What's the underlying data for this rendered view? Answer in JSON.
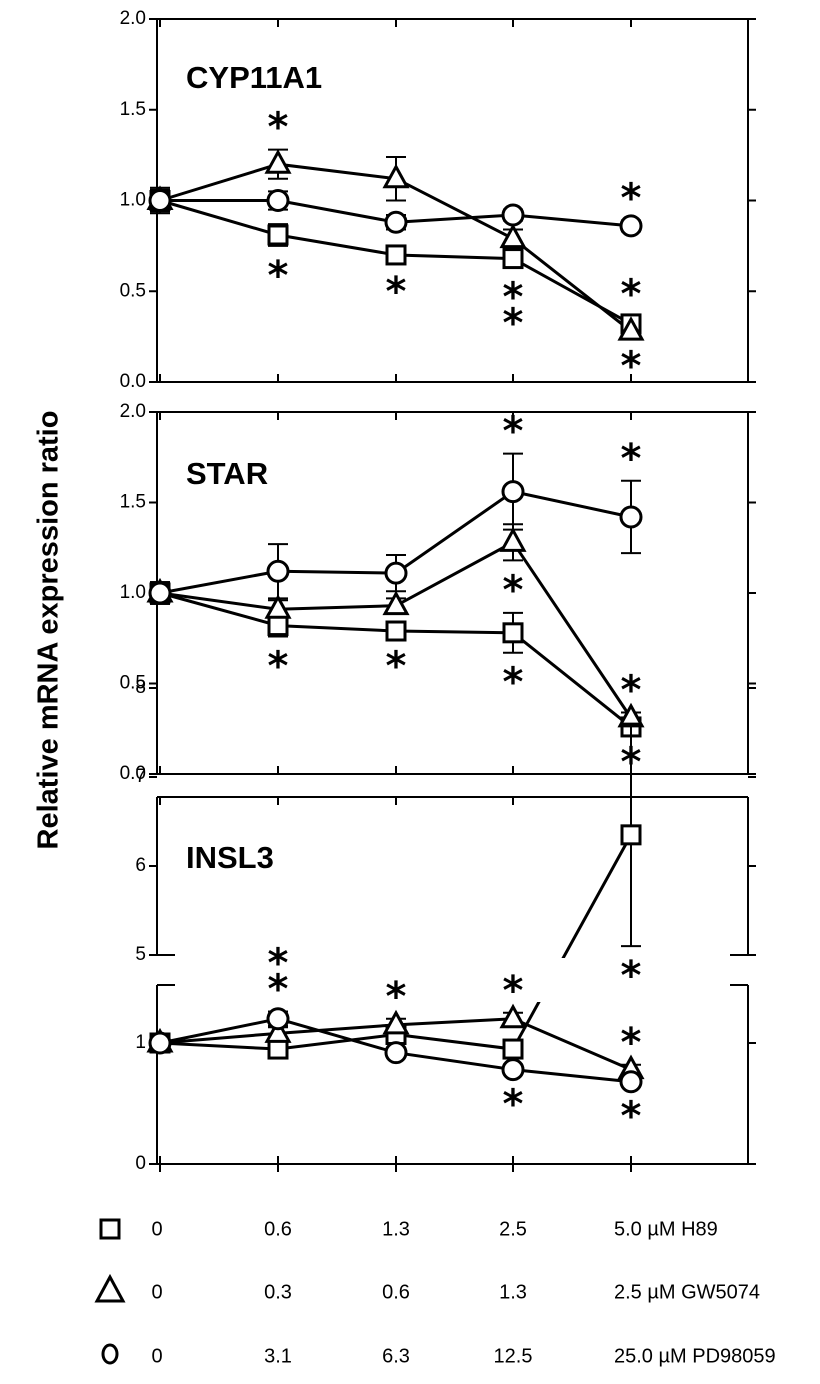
{
  "ylabel": "Relative mRNA expression ratio",
  "chart_data": [
    {
      "type": "line",
      "title": "CYP11A1",
      "ylim": [
        0,
        2
      ],
      "yticks": [
        "0.0",
        "0.5",
        "1.0",
        "1.5",
        "2.0"
      ],
      "x": [
        0,
        1,
        2,
        3,
        4
      ],
      "series": [
        {
          "marker": "square",
          "values": [
            1.0,
            0.81,
            0.7,
            0.68,
            0.32
          ],
          "err": [
            0.07,
            0.06,
            0.04,
            0.05,
            0.04
          ],
          "stars_below": [
            0,
            1,
            1,
            2,
            0
          ],
          "stars_above": [
            0,
            0,
            0,
            0,
            1
          ]
        },
        {
          "marker": "triangle",
          "values": [
            1.0,
            1.2,
            1.12,
            0.79,
            0.28
          ],
          "err": [
            0.05,
            0.08,
            0.12,
            0.05,
            0.03
          ],
          "stars_below": [
            0,
            0,
            0,
            0,
            1
          ],
          "stars_above": [
            0,
            1,
            0,
            0,
            0
          ]
        },
        {
          "marker": "circle",
          "values": [
            1.0,
            1.0,
            0.88,
            0.92,
            0.86
          ],
          "err": [
            0.06,
            0.05,
            0.04,
            0.03,
            0.03
          ],
          "stars_below": [
            0,
            0,
            0,
            0,
            0
          ],
          "stars_above": [
            0,
            0,
            0,
            0,
            1
          ]
        }
      ]
    },
    {
      "type": "line",
      "title": "STAR",
      "ylim": [
        0,
        2
      ],
      "yticks": [
        "0.0",
        "0.5",
        "1.0",
        "1.5",
        "2.0"
      ],
      "x": [
        0,
        1,
        2,
        3,
        4
      ],
      "series": [
        {
          "marker": "square",
          "values": [
            1.0,
            0.82,
            0.79,
            0.78,
            0.26
          ],
          "err": [
            0.06,
            0.06,
            0.03,
            0.11,
            0.03
          ],
          "stars_below": [
            0,
            1,
            1,
            1,
            1
          ],
          "stars_above": [
            0,
            0,
            0,
            0,
            0
          ]
        },
        {
          "marker": "triangle",
          "values": [
            1.0,
            0.91,
            0.93,
            1.28,
            0.31
          ],
          "err": [
            0.05,
            0.05,
            0.04,
            0.1,
            0.03
          ],
          "stars_below": [
            0,
            0,
            0,
            1,
            0
          ],
          "stars_above": [
            0,
            0,
            0,
            0,
            1
          ]
        },
        {
          "marker": "circle",
          "values": [
            1.0,
            1.12,
            1.11,
            1.56,
            1.42
          ],
          "err": [
            0.06,
            0.15,
            0.1,
            0.21,
            0.2
          ],
          "stars_below": [
            0,
            0,
            0,
            0,
            0
          ],
          "stars_above": [
            0,
            0,
            0,
            1,
            1
          ]
        }
      ]
    },
    {
      "type": "line",
      "title": "INSL3",
      "broken_y_axis": true,
      "yticks_upper": [
        "5",
        "6",
        "7",
        "8"
      ],
      "yticks_lower": [
        "0",
        "1"
      ],
      "x": [
        0,
        1,
        2,
        3,
        4
      ],
      "series": [
        {
          "marker": "square",
          "values": [
            1.0,
            0.95,
            1.07,
            0.95,
            6.35
          ],
          "err": [
            0.04,
            0.04,
            0.04,
            0.05,
            1.25
          ],
          "stars_below": [
            0,
            0,
            0,
            0,
            1
          ],
          "stars_above": [
            0,
            0,
            0,
            0,
            0
          ]
        },
        {
          "marker": "triangle",
          "values": [
            1.0,
            1.08,
            1.15,
            1.2,
            0.78
          ],
          "err": [
            0.04,
            0.05,
            0.05,
            0.05,
            0.04
          ],
          "stars_below": [
            0,
            0,
            0,
            0,
            0
          ],
          "stars_above": [
            0,
            0,
            1,
            1,
            1
          ]
        },
        {
          "marker": "circle",
          "values": [
            1.0,
            1.2,
            0.92,
            0.78,
            0.68
          ],
          "err": [
            0.04,
            0.06,
            0.04,
            0.04,
            0.04
          ],
          "stars_below": [
            0,
            0,
            0,
            1,
            1
          ],
          "stars_above": [
            0,
            2,
            0,
            0,
            0
          ]
        }
      ]
    }
  ],
  "doses": [
    {
      "marker": "square",
      "values": [
        "0",
        "0.6",
        "1.3",
        "2.5",
        "5.0"
      ],
      "unit": "µM H89"
    },
    {
      "marker": "triangle",
      "values": [
        "0",
        "0.3",
        "0.6",
        "1.3",
        "2.5"
      ],
      "unit": "µM GW5074"
    },
    {
      "marker": "circle",
      "values": [
        "0",
        "3.1",
        "6.3",
        "12.5",
        "25.0"
      ],
      "unit": "µM PD98059"
    }
  ]
}
